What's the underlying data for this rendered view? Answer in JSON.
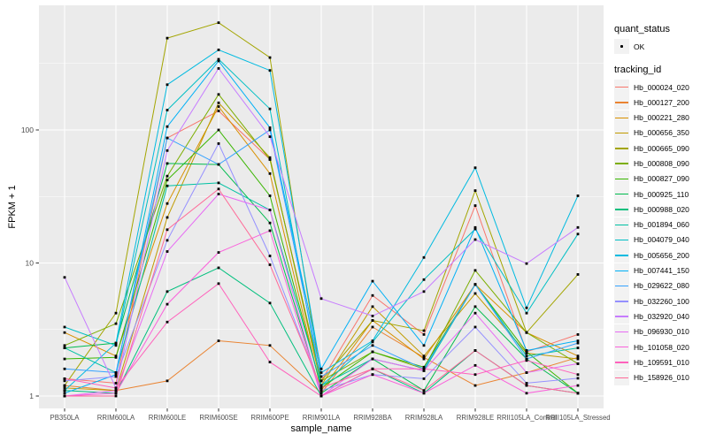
{
  "figure": {
    "background": "#FFFFFF",
    "panel_bg": "#EBEBEB",
    "grid_color": "#FFFFFF",
    "tick_color": "#333333",
    "tick_label_color": "#4D4D4D"
  },
  "axes": {
    "x_title": "sample_name",
    "y_title": "FPKM + 1",
    "y_tick_labels": [
      "1",
      "10",
      "100"
    ]
  },
  "legend": {
    "quant_status_title": "quant_status",
    "quant_status_items": [
      {
        "label": "OK",
        "marker": "black-point"
      }
    ],
    "tracking_id_title": "tracking_id",
    "key_bg": "#F2F2F2"
  },
  "chart_data": {
    "type": "line",
    "title": "",
    "xlabel": "sample_name",
    "ylabel": "FPKM + 1",
    "y_scale": "log10",
    "ylim": [
      1,
      700
    ],
    "y_tick_values": [
      1,
      10,
      100
    ],
    "y_minor_values": [
      3.1623,
      31.623,
      316.23
    ],
    "grid": true,
    "legend_position": "right",
    "point_color": "#000000",
    "categories": [
      "PB350LA",
      "RRIM600LA",
      "RRIM600LE",
      "RRIM600SE",
      "RRIM600PE",
      "RRIM901LA",
      "RRIM928BA",
      "RRIM928LA",
      "RRIM928LE",
      "RRII105LA_Control",
      "RRII105LA_Stressed"
    ],
    "series": [
      {
        "name": "Hb_000024_020",
        "color": "#F8766D",
        "values": [
          1.35,
          1.25,
          87,
          139,
          60,
          1.3,
          5.7,
          2.9,
          27,
          2.15,
          2.9
        ]
      },
      {
        "name": "Hb_000127_200",
        "color": "#EA8331",
        "values": [
          1.2,
          1.1,
          1.3,
          2.6,
          2.4,
          1.05,
          3.3,
          1.95,
          1.2,
          1.5,
          1.95
        ]
      },
      {
        "name": "Hb_000221_280",
        "color": "#D89000",
        "values": [
          3.0,
          2.0,
          28,
          150,
          47,
          1.1,
          3.7,
          1.9,
          6.9,
          3.0,
          2.0
        ]
      },
      {
        "name": "Hb_000656_350",
        "color": "#C09B00",
        "values": [
          1.15,
          1.1,
          22,
          160,
          62,
          1.2,
          4.7,
          2.0,
          5.9,
          2.1,
          1.9
        ]
      },
      {
        "name": "Hb_000665_090",
        "color": "#A3A500",
        "values": [
          1.2,
          4.2,
          490,
          640,
          350,
          1.3,
          3.7,
          3.1,
          35,
          3.0,
          8.2
        ]
      },
      {
        "name": "Hb_000808_090",
        "color": "#7CAE00",
        "values": [
          2.4,
          3.5,
          45,
          185,
          60,
          1.3,
          2.15,
          1.6,
          8.8,
          3.0,
          1.75
        ]
      },
      {
        "name": "Hb_000827_090",
        "color": "#39B600",
        "values": [
          1.9,
          1.95,
          42,
          100,
          32,
          1.15,
          2.15,
          1.65,
          6.9,
          2.15,
          1.05
        ]
      },
      {
        "name": "Hb_000925_110",
        "color": "#00BB4E",
        "values": [
          2.3,
          2.5,
          56,
          55,
          20,
          1.05,
          1.9,
          1.1,
          4.7,
          1.9,
          1.05
        ]
      },
      {
        "name": "Hb_000988_020",
        "color": "#00BF7D",
        "values": [
          1.1,
          1.05,
          6.1,
          9.2,
          5.0,
          1.0,
          1.6,
          1.05,
          2.2,
          1.2,
          1.05
        ]
      },
      {
        "name": "Hb_001894_060",
        "color": "#00C1A3",
        "values": [
          2.3,
          1.5,
          38,
          40,
          25,
          1.2,
          1.9,
          1.55,
          6.9,
          2.0,
          2.3
        ]
      },
      {
        "name": "Hb_004079_040",
        "color": "#00BFC4",
        "values": [
          3.3,
          2.4,
          141,
          340,
          144,
          1.2,
          2.55,
          7.5,
          18,
          4.2,
          16.5
        ]
      },
      {
        "name": "Hb_005656_200",
        "color": "#00BAE0",
        "values": [
          1.1,
          2.5,
          219,
          400,
          280,
          1.5,
          2.6,
          11,
          52,
          4.6,
          32
        ]
      },
      {
        "name": "Hb_007441_150",
        "color": "#00B0F6",
        "values": [
          1.05,
          1.45,
          106,
          330,
          104,
          1.6,
          7.3,
          2.4,
          18.5,
          2.2,
          2.6
        ]
      },
      {
        "name": "Hb_029622_080",
        "color": "#35A2FF",
        "values": [
          1.6,
          1.5,
          87,
          55,
          100,
          1.4,
          2.4,
          1.6,
          6.9,
          1.9,
          2.5
        ]
      },
      {
        "name": "Hb_032260_100",
        "color": "#9590FF",
        "values": [
          1.3,
          1.4,
          14.8,
          79,
          11.3,
          1.1,
          1.45,
          1.35,
          3.3,
          1.25,
          1.36
        ]
      },
      {
        "name": "Hb_032920_040",
        "color": "#C77CFF",
        "values": [
          7.8,
          1.15,
          70,
          290,
          89,
          5.4,
          4.0,
          6.1,
          15,
          9.9,
          18.5
        ]
      },
      {
        "name": "Hb_096930_010",
        "color": "#E76BF3",
        "values": [
          1.0,
          1.1,
          12.2,
          33,
          25,
          1.0,
          1.9,
          1.55,
          4.2,
          1.5,
          1.75
        ]
      },
      {
        "name": "Hb_101058_020",
        "color": "#FA62DB",
        "values": [
          1.0,
          1.05,
          4.9,
          12,
          17.5,
          1.0,
          1.45,
          1.05,
          1.7,
          1.05,
          1.2
        ]
      },
      {
        "name": "Hb_109591_010",
        "color": "#FF62BC",
        "values": [
          1.35,
          1.15,
          3.6,
          7.0,
          1.8,
          1.0,
          1.6,
          1.6,
          1.45,
          1.85,
          1.45
        ]
      },
      {
        "name": "Hb_158926_010",
        "color": "#FF6A98",
        "values": [
          1.0,
          1.0,
          17.8,
          36,
          9.7,
          1.15,
          1.6,
          1.1,
          2.2,
          1.2,
          1.05
        ]
      }
    ]
  }
}
